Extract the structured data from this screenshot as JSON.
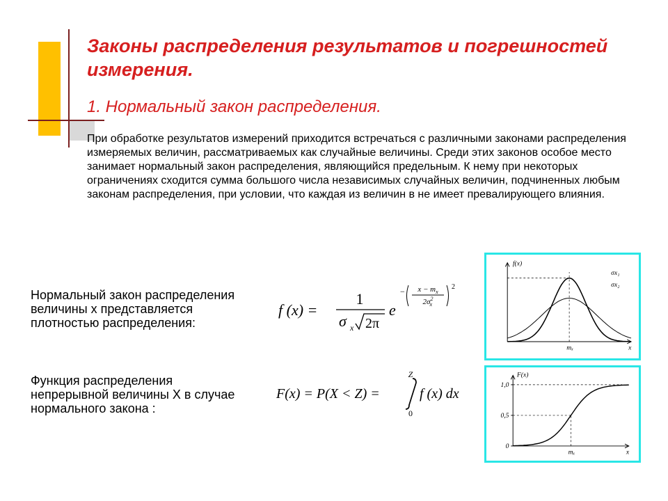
{
  "title": "Законы распределения результатов и погрешностей измерения.",
  "subtitle": "1. Нормальный закон распределения.",
  "paragraph": "При обработке результатов измерений приходится встречаться с различными законами распределения измеряемых величин, рассматриваемых как случайные величины. Среди этих законов особое место занимает нормальный закон распределения, являющийся предельным. К нему при некоторых ограничениях сходится сумма большого числа независимых случайных величин, подчиненных любым законам распределения, при условии, что каждая из величин в не имеет превалирующего влияния.",
  "desc1": "Нормальный закон распределения величины х представляется плотностью распределения:",
  "desc2": "Функция распределения непрерывной величины X в случае нормального закона :",
  "formula1": {
    "lhs": "f (x) =",
    "numerator": "1",
    "denom_sigma": "σ",
    "denom_sub": "x",
    "denom_sqrt": "2π",
    "e": "e",
    "exp_minus": "−",
    "exp_num": "x − m",
    "exp_num_sub": "x",
    "exp_den": "2σ",
    "exp_den_sub": "x",
    "exp_den_sup": "2",
    "exp_outer_sup": "2"
  },
  "formula2": {
    "lhs": "F(x) = P(X < Z) =",
    "int_upper": "Z",
    "int_lower": "0",
    "integrand": "f (x) dx"
  },
  "chart1": {
    "type": "line",
    "ylabel": "f(x)",
    "xlabel": "x",
    "mean_label": "mₓ",
    "series": [
      {
        "label": "σx₁",
        "color": "#000000",
        "width": 1.6,
        "peak": 0.95,
        "spread": 0.9
      },
      {
        "label": "σx₂",
        "color": "#000000",
        "width": 1.0,
        "peak": 0.65,
        "spread": 1.5
      }
    ],
    "background_color": "#ffffff",
    "axis_color": "#000000",
    "font_size": 10
  },
  "chart2": {
    "type": "line",
    "ylabel": "F(x)",
    "xlabel": "x",
    "mean_label": "mₓ",
    "yticks": [
      "0",
      "0,5",
      "1,0"
    ],
    "curve_color": "#000000",
    "curve_width": 1.5,
    "background_color": "#ffffff",
    "axis_color": "#000000",
    "font_size": 10
  },
  "colors": {
    "title": "#d61f1f",
    "accent_yellow": "#ffc000",
    "accent_line": "#7a1f1f",
    "accent_grey": "#d9d9d9",
    "chart_border": "#29e6e6",
    "text": "#000000",
    "background": "#ffffff"
  },
  "fonts": {
    "title_size": 27,
    "subtitle_size": 24,
    "body_size": 16,
    "desc_size": 18,
    "formula_size": 22
  }
}
